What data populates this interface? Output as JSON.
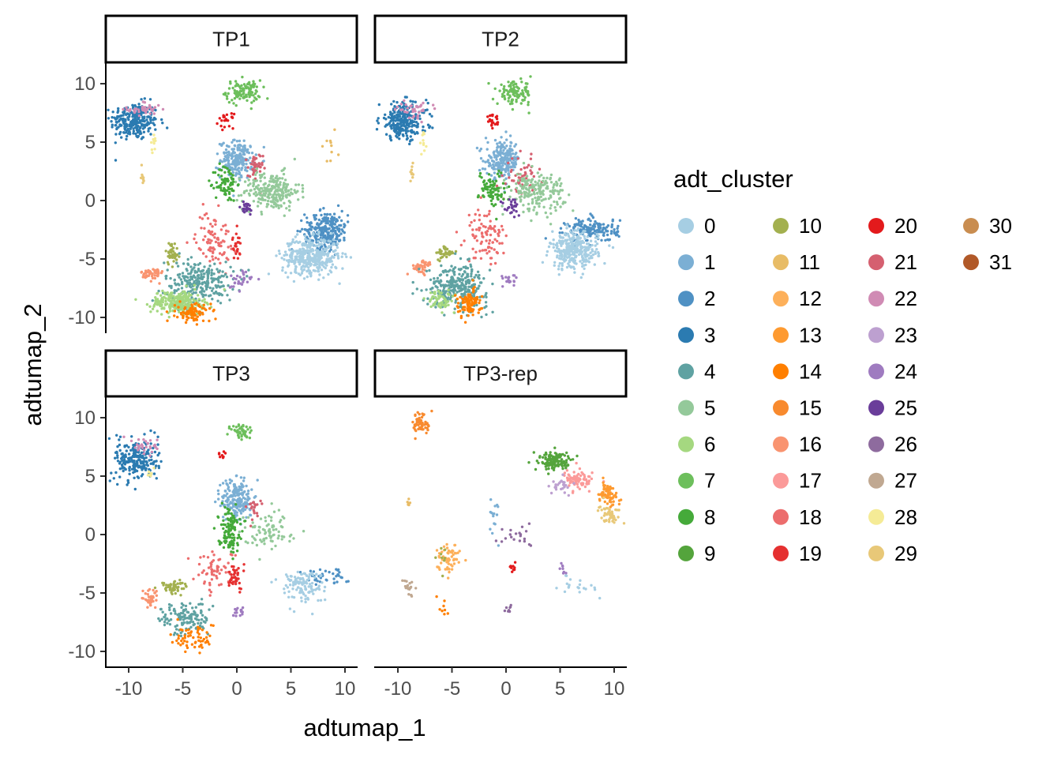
{
  "chart_data": {
    "type": "scatter",
    "facets": [
      "TP1",
      "TP2",
      "TP3",
      "TP3-rep"
    ],
    "xlabel": "adtumap_1",
    "ylabel": "adtumap_2",
    "xlim": [
      -12.5,
      11.5
    ],
    "ylim": [
      -11,
      11.5
    ],
    "xticks": [
      -10,
      -5,
      0,
      5,
      10
    ],
    "xtick_labels": [
      "-10",
      "-5",
      "0",
      "5",
      "10"
    ],
    "yticks": [
      10,
      5,
      0,
      -5,
      -10
    ],
    "ytick_labels": [
      "10",
      "5",
      "0",
      "-5",
      "-10"
    ],
    "legend": {
      "title": "adt_cluster",
      "position": "right",
      "ncol": 4,
      "entries": [
        {
          "label": "0",
          "color": "#A6CEE3"
        },
        {
          "label": "1",
          "color": "#7BAFD4"
        },
        {
          "label": "2",
          "color": "#4F91C4"
        },
        {
          "label": "3",
          "color": "#2B7BB1"
        },
        {
          "label": "4",
          "color": "#5FA2A2"
        },
        {
          "label": "5",
          "color": "#94C99A"
        },
        {
          "label": "6",
          "color": "#A5D880"
        },
        {
          "label": "7",
          "color": "#6DBF5C"
        },
        {
          "label": "8",
          "color": "#45AA3A"
        },
        {
          "label": "9",
          "color": "#54A43C"
        },
        {
          "label": "10",
          "color": "#A3B04F"
        },
        {
          "label": "11",
          "color": "#E8BC66"
        },
        {
          "label": "12",
          "color": "#FDB05A"
        },
        {
          "label": "13",
          "color": "#FE9A30"
        },
        {
          "label": "14",
          "color": "#FF7F00"
        },
        {
          "label": "15",
          "color": "#F88A2E"
        },
        {
          "label": "16",
          "color": "#F99470"
        },
        {
          "label": "17",
          "color": "#FB9A99"
        },
        {
          "label": "18",
          "color": "#EC6D6D"
        },
        {
          "label": "19",
          "color": "#E53030"
        },
        {
          "label": "20",
          "color": "#E31A1C"
        },
        {
          "label": "21",
          "color": "#D56070"
        },
        {
          "label": "22",
          "color": "#D08BB4"
        },
        {
          "label": "23",
          "color": "#BDA0D0"
        },
        {
          "label": "24",
          "color": "#9F7BC0"
        },
        {
          "label": "25",
          "color": "#6A3D9A"
        },
        {
          "label": "26",
          "color": "#8E6B9E"
        },
        {
          "label": "27",
          "color": "#C0A891"
        },
        {
          "label": "28",
          "color": "#F5EB96"
        },
        {
          "label": "29",
          "color": "#E8C878"
        },
        {
          "label": "30",
          "color": "#C98D50"
        },
        {
          "label": "31",
          "color": "#B15928"
        }
      ]
    },
    "grid": false,
    "point_size": "small",
    "clusters_by_facet": {
      "TP1": [
        {
          "cluster": 3,
          "x": -9.5,
          "y": 6.8,
          "sx": 1.1,
          "sy": 0.8,
          "n": 260
        },
        {
          "cluster": 22,
          "x": -8.5,
          "y": 7.8,
          "sx": 0.8,
          "sy": 0.35,
          "n": 40
        },
        {
          "cluster": 28,
          "x": -7.7,
          "y": 4.9,
          "sx": 0.15,
          "sy": 0.35,
          "n": 10
        },
        {
          "cluster": 29,
          "x": -8.7,
          "y": 2.3,
          "sx": 0.12,
          "sy": 0.5,
          "n": 10
        },
        {
          "cluster": 7,
          "x": 0.6,
          "y": 9.3,
          "sx": 0.8,
          "sy": 0.5,
          "n": 110
        },
        {
          "cluster": 20,
          "x": -1.0,
          "y": 6.8,
          "sx": 0.35,
          "sy": 0.3,
          "n": 22
        },
        {
          "cluster": 1,
          "x": 0.1,
          "y": 3.5,
          "sx": 0.8,
          "sy": 0.8,
          "n": 210
        },
        {
          "cluster": 21,
          "x": 1.7,
          "y": 2.7,
          "sx": 0.35,
          "sy": 0.7,
          "n": 40
        },
        {
          "cluster": 5,
          "x": 3.2,
          "y": 0.8,
          "sx": 1.3,
          "sy": 0.8,
          "n": 240
        },
        {
          "cluster": 8,
          "x": -1.0,
          "y": 1.5,
          "sx": 0.5,
          "sy": 0.8,
          "n": 80
        },
        {
          "cluster": 25,
          "x": 0.8,
          "y": -0.7,
          "sx": 0.4,
          "sy": 0.3,
          "n": 25
        },
        {
          "cluster": 2,
          "x": 8.3,
          "y": -2.5,
          "sx": 1.0,
          "sy": 0.8,
          "n": 260
        },
        {
          "cluster": 0,
          "x": 6.8,
          "y": -4.8,
          "sx": 1.3,
          "sy": 0.8,
          "n": 380
        },
        {
          "cluster": 18,
          "x": -2.2,
          "y": -3.3,
          "sx": 0.8,
          "sy": 1.2,
          "n": 90
        },
        {
          "cluster": 19,
          "x": 0.0,
          "y": -3.9,
          "sx": 0.2,
          "sy": 0.6,
          "n": 25
        },
        {
          "cluster": 10,
          "x": -6.0,
          "y": -4.5,
          "sx": 0.3,
          "sy": 0.5,
          "n": 40
        },
        {
          "cluster": 16,
          "x": -7.8,
          "y": -6.3,
          "sx": 0.5,
          "sy": 0.3,
          "n": 50
        },
        {
          "cluster": 4,
          "x": -3.5,
          "y": -7.0,
          "sx": 1.6,
          "sy": 0.9,
          "n": 260
        },
        {
          "cluster": 6,
          "x": -5.5,
          "y": -8.7,
          "sx": 1.2,
          "sy": 0.5,
          "n": 240
        },
        {
          "cluster": 14,
          "x": -4.0,
          "y": -9.6,
          "sx": 0.8,
          "sy": 0.4,
          "n": 90
        },
        {
          "cluster": 24,
          "x": 0.2,
          "y": -6.8,
          "sx": 0.6,
          "sy": 0.4,
          "n": 30
        },
        {
          "cluster": 11,
          "x": 8.6,
          "y": 4.3,
          "sx": 0.5,
          "sy": 1.2,
          "n": 10
        }
      ],
      "TP2": [
        {
          "cluster": 3,
          "x": -9.5,
          "y": 6.8,
          "sx": 1.1,
          "sy": 0.8,
          "n": 260
        },
        {
          "cluster": 22,
          "x": -8.5,
          "y": 7.8,
          "sx": 0.8,
          "sy": 0.35,
          "n": 40
        },
        {
          "cluster": 28,
          "x": -7.7,
          "y": 4.9,
          "sx": 0.15,
          "sy": 0.35,
          "n": 10
        },
        {
          "cluster": 29,
          "x": -8.7,
          "y": 2.3,
          "sx": 0.12,
          "sy": 0.5,
          "n": 10
        },
        {
          "cluster": 7,
          "x": 0.8,
          "y": 9.2,
          "sx": 0.8,
          "sy": 0.5,
          "n": 110
        },
        {
          "cluster": 20,
          "x": -1.2,
          "y": 6.7,
          "sx": 0.35,
          "sy": 0.3,
          "n": 22
        },
        {
          "cluster": 1,
          "x": -0.3,
          "y": 3.5,
          "sx": 0.8,
          "sy": 0.8,
          "n": 210
        },
        {
          "cluster": 21,
          "x": 1.5,
          "y": 2.0,
          "sx": 0.7,
          "sy": 0.8,
          "n": 50
        },
        {
          "cluster": 5,
          "x": 2.8,
          "y": 0.8,
          "sx": 1.3,
          "sy": 0.8,
          "n": 200
        },
        {
          "cluster": 8,
          "x": -1.3,
          "y": 1.0,
          "sx": 0.6,
          "sy": 0.8,
          "n": 80
        },
        {
          "cluster": 25,
          "x": 0.6,
          "y": -0.5,
          "sx": 0.5,
          "sy": 0.4,
          "n": 25
        },
        {
          "cluster": 2,
          "x": 8.0,
          "y": -2.5,
          "sx": 1.2,
          "sy": 0.5,
          "n": 160
        },
        {
          "cluster": 0,
          "x": 6.3,
          "y": -4.3,
          "sx": 1.1,
          "sy": 0.8,
          "n": 300
        },
        {
          "cluster": 18,
          "x": -1.8,
          "y": -3.0,
          "sx": 0.9,
          "sy": 1.2,
          "n": 90
        },
        {
          "cluster": 10,
          "x": -5.6,
          "y": -4.5,
          "sx": 0.4,
          "sy": 0.3,
          "n": 40
        },
        {
          "cluster": 16,
          "x": -7.8,
          "y": -5.7,
          "sx": 0.5,
          "sy": 0.3,
          "n": 40
        },
        {
          "cluster": 4,
          "x": -4.5,
          "y": -7.3,
          "sx": 1.4,
          "sy": 0.9,
          "n": 300
        },
        {
          "cluster": 6,
          "x": -6.0,
          "y": -8.5,
          "sx": 0.6,
          "sy": 0.4,
          "n": 60
        },
        {
          "cluster": 14,
          "x": -3.5,
          "y": -8.8,
          "sx": 0.6,
          "sy": 0.6,
          "n": 90
        },
        {
          "cluster": 24,
          "x": 0.5,
          "y": -6.8,
          "sx": 0.4,
          "sy": 0.3,
          "n": 20
        }
      ],
      "TP3": [
        {
          "cluster": 3,
          "x": -9.3,
          "y": 6.4,
          "sx": 1.0,
          "sy": 0.9,
          "n": 230
        },
        {
          "cluster": 22,
          "x": -8.5,
          "y": 7.6,
          "sx": 0.6,
          "sy": 0.35,
          "n": 30
        },
        {
          "cluster": 28,
          "x": -8.0,
          "y": 5.2,
          "sx": 0.2,
          "sy": 0.3,
          "n": 8
        },
        {
          "cluster": 7,
          "x": 0.5,
          "y": 8.8,
          "sx": 0.5,
          "sy": 0.4,
          "n": 50
        },
        {
          "cluster": 20,
          "x": -1.3,
          "y": 6.8,
          "sx": 0.2,
          "sy": 0.2,
          "n": 8
        },
        {
          "cluster": 1,
          "x": 0.0,
          "y": 3.0,
          "sx": 0.7,
          "sy": 0.9,
          "n": 200
        },
        {
          "cluster": 21,
          "x": 1.5,
          "y": 2.5,
          "sx": 0.3,
          "sy": 0.5,
          "n": 20
        },
        {
          "cluster": 8,
          "x": -0.7,
          "y": 0.5,
          "sx": 0.5,
          "sy": 0.9,
          "n": 120
        },
        {
          "cluster": 5,
          "x": 3.0,
          "y": 0.3,
          "sx": 1.2,
          "sy": 0.8,
          "n": 80
        },
        {
          "cluster": 2,
          "x": 8.0,
          "y": -3.5,
          "sx": 1.0,
          "sy": 0.4,
          "n": 40
        },
        {
          "cluster": 0,
          "x": 6.0,
          "y": -4.4,
          "sx": 1.0,
          "sy": 0.7,
          "n": 120
        },
        {
          "cluster": 18,
          "x": -2.0,
          "y": -3.0,
          "sx": 1.0,
          "sy": 0.8,
          "n": 60
        },
        {
          "cluster": 19,
          "x": -0.2,
          "y": -3.6,
          "sx": 0.4,
          "sy": 0.6,
          "n": 40
        },
        {
          "cluster": 10,
          "x": -5.8,
          "y": -4.5,
          "sx": 0.6,
          "sy": 0.3,
          "n": 50
        },
        {
          "cluster": 16,
          "x": -8.0,
          "y": -5.5,
          "sx": 0.4,
          "sy": 0.4,
          "n": 40
        },
        {
          "cluster": 4,
          "x": -4.8,
          "y": -7.2,
          "sx": 1.1,
          "sy": 0.7,
          "n": 130
        },
        {
          "cluster": 14,
          "x": -4.0,
          "y": -8.8,
          "sx": 1.0,
          "sy": 0.6,
          "n": 60
        },
        {
          "cluster": 24,
          "x": 0.2,
          "y": -6.7,
          "sx": 0.3,
          "sy": 0.3,
          "n": 15
        }
      ],
      "TP3-rep": [
        {
          "cluster": 15,
          "x": -7.8,
          "y": 9.5,
          "sx": 0.4,
          "sy": 0.5,
          "n": 60
        },
        {
          "cluster": 9,
          "x": 4.5,
          "y": 6.3,
          "sx": 0.8,
          "sy": 0.4,
          "n": 130
        },
        {
          "cluster": 17,
          "x": 6.8,
          "y": 4.6,
          "sx": 0.7,
          "sy": 0.4,
          "n": 80
        },
        {
          "cluster": 23,
          "x": 5.0,
          "y": 4.2,
          "sx": 0.4,
          "sy": 0.35,
          "n": 25
        },
        {
          "cluster": 13,
          "x": 9.4,
          "y": 3.4,
          "sx": 0.5,
          "sy": 0.5,
          "n": 70
        },
        {
          "cluster": 29,
          "x": 9.6,
          "y": 1.8,
          "sx": 0.5,
          "sy": 0.4,
          "n": 50
        },
        {
          "cluster": 12,
          "x": -5.3,
          "y": -2.0,
          "sx": 0.5,
          "sy": 0.6,
          "n": 60
        },
        {
          "cluster": 27,
          "x": -9.0,
          "y": -4.5,
          "sx": 0.25,
          "sy": 0.5,
          "n": 20
        },
        {
          "cluster": 1,
          "x": -1.2,
          "y": 1.5,
          "sx": 0.3,
          "sy": 1.0,
          "n": 15
        },
        {
          "cluster": 26,
          "x": 1.2,
          "y": 0.0,
          "sx": 0.8,
          "sy": 0.6,
          "n": 20
        },
        {
          "cluster": 0,
          "x": 6.5,
          "y": -4.3,
          "sx": 0.8,
          "sy": 0.4,
          "n": 20
        },
        {
          "cluster": 20,
          "x": 0.6,
          "y": -2.8,
          "sx": 0.2,
          "sy": 0.15,
          "n": 10
        },
        {
          "cluster": 26,
          "x": 0.2,
          "y": -6.4,
          "sx": 0.2,
          "sy": 0.2,
          "n": 8
        },
        {
          "cluster": 10,
          "x": -6.0,
          "y": -2.0,
          "sx": 0.3,
          "sy": 0.6,
          "n": 8
        },
        {
          "cluster": 24,
          "x": 5.2,
          "y": -3.0,
          "sx": 0.3,
          "sy": 0.2,
          "n": 8
        },
        {
          "cluster": 11,
          "x": -9.0,
          "y": 2.6,
          "sx": 0.1,
          "sy": 0.3,
          "n": 6
        },
        {
          "cluster": 14,
          "x": -5.8,
          "y": -6.2,
          "sx": 0.3,
          "sy": 0.4,
          "n": 8
        }
      ]
    }
  }
}
